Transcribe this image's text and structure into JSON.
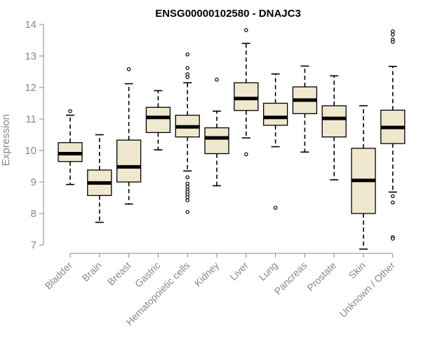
{
  "chart_data": {
    "type": "boxplot",
    "title": "ENSG00000102580 - DNAJC3",
    "xlabel": "",
    "ylabel": "Expression",
    "ylim": [
      6.8,
      14.1
    ],
    "yticks": [
      7,
      8,
      9,
      10,
      11,
      12,
      13,
      14
    ],
    "grid": false,
    "box_fill": "#efe8cf",
    "line_color": "#000000",
    "axis_color": "#888888",
    "categories": [
      "Bladder",
      "Brain",
      "Breast",
      "Gastric",
      "Hematopoietic cells",
      "Kidney",
      "Liver",
      "Lung",
      "Pancreas",
      "Prostate",
      "Skin",
      "Unknown / Other"
    ],
    "series": [
      {
        "name": "Bladder",
        "whisker_low": 8.92,
        "q1": 9.65,
        "median": 9.9,
        "q3": 10.25,
        "whisker_high": 11.12,
        "outliers": [
          11.25
        ]
      },
      {
        "name": "Brain",
        "whisker_low": 7.72,
        "q1": 8.57,
        "median": 8.97,
        "q3": 9.38,
        "whisker_high": 10.5,
        "outliers": []
      },
      {
        "name": "Breast",
        "whisker_low": 8.3,
        "q1": 9.0,
        "median": 9.48,
        "q3": 10.33,
        "whisker_high": 12.12,
        "outliers": [
          12.58
        ]
      },
      {
        "name": "Gastric",
        "whisker_low": 10.02,
        "q1": 10.57,
        "median": 11.05,
        "q3": 11.37,
        "whisker_high": 11.9,
        "outliers": []
      },
      {
        "name": "Hematopoietic cells",
        "whisker_low": 9.35,
        "q1": 10.43,
        "median": 10.75,
        "q3": 11.12,
        "whisker_high": 12.15,
        "outliers": [
          13.05,
          12.62,
          12.42,
          12.33,
          9.15,
          8.95,
          8.85,
          8.75,
          8.68,
          8.6,
          8.52,
          8.42,
          8.05
        ]
      },
      {
        "name": "Kidney",
        "whisker_low": 8.88,
        "q1": 9.9,
        "median": 10.4,
        "q3": 10.72,
        "whisker_high": 11.25,
        "outliers": [
          12.25
        ]
      },
      {
        "name": "Liver",
        "whisker_low": 10.4,
        "q1": 11.27,
        "median": 11.65,
        "q3": 12.15,
        "whisker_high": 13.4,
        "outliers": [
          13.82,
          9.88
        ]
      },
      {
        "name": "Lung",
        "whisker_low": 10.12,
        "q1": 10.8,
        "median": 11.05,
        "q3": 11.5,
        "whisker_high": 12.43,
        "outliers": [
          8.18
        ]
      },
      {
        "name": "Pancreas",
        "whisker_low": 9.95,
        "q1": 11.17,
        "median": 11.6,
        "q3": 12.02,
        "whisker_high": 12.68,
        "outliers": []
      },
      {
        "name": "Prostate",
        "whisker_low": 9.07,
        "q1": 10.43,
        "median": 11.02,
        "q3": 11.42,
        "whisker_high": 12.37,
        "outliers": []
      },
      {
        "name": "Skin",
        "whisker_low": 6.87,
        "q1": 8.0,
        "median": 9.05,
        "q3": 10.07,
        "whisker_high": 11.42,
        "outliers": []
      },
      {
        "name": "Unknown / Other",
        "whisker_low": 8.68,
        "q1": 10.22,
        "median": 10.73,
        "q3": 11.28,
        "whisker_high": 12.67,
        "outliers": [
          13.78,
          13.68,
          13.52,
          13.45,
          8.55,
          8.35,
          7.25,
          7.2
        ]
      }
    ]
  }
}
